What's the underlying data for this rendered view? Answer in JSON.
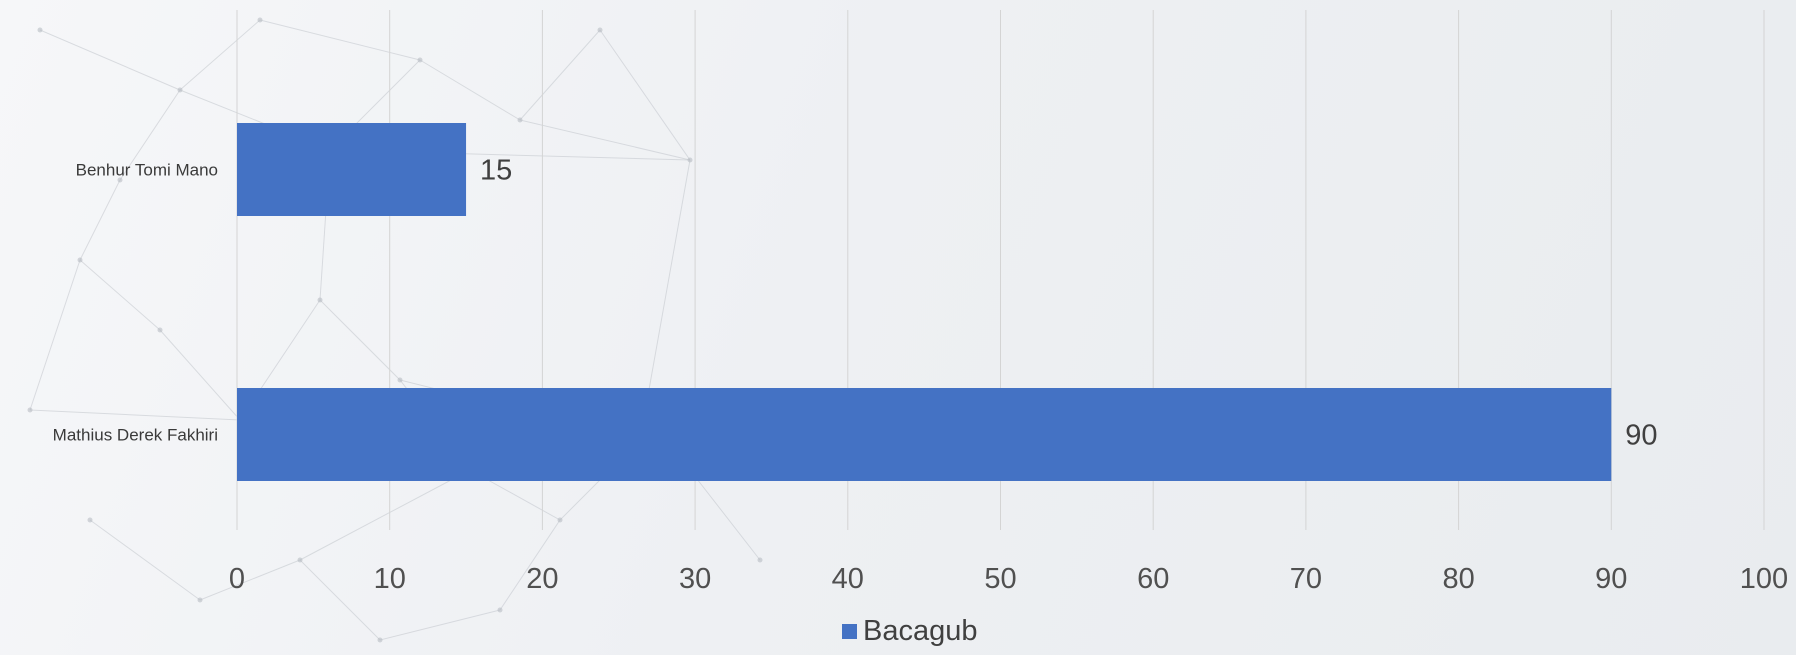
{
  "chart_data": {
    "type": "bar",
    "orientation": "horizontal",
    "categories": [
      "Benhur Tomi Mano",
      "Mathius Derek Fakhiri"
    ],
    "series": [
      {
        "name": "Bacagub",
        "values": [
          15,
          90
        ],
        "color": "#4472c4"
      }
    ],
    "xlim": [
      0,
      100
    ],
    "xticks": [
      0,
      10,
      20,
      30,
      40,
      50,
      60,
      70,
      80,
      90,
      100
    ],
    "grid": true,
    "legend_position": "bottom",
    "data_labels": true,
    "title": "",
    "xlabel": "",
    "ylabel": ""
  },
  "colors": {
    "bar": "#4472c4",
    "grid": "#d4d4d4"
  }
}
